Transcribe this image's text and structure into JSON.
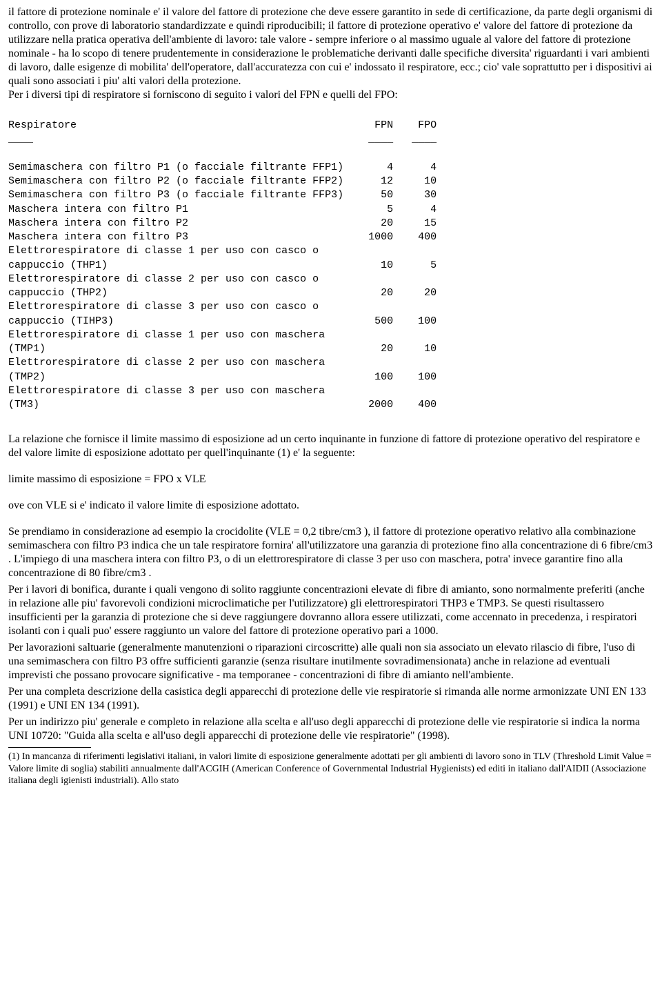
{
  "para1": "il fattore di protezione nominale e' il valore del fattore di protezione che deve essere garantito in sede di certificazione, da parte degli organismi di controllo, con prove di laboratorio standardizzate e quindi riproducibili; il fattore di protezione operativo e' valore del fattore di protezione da utilizzare nella pratica operativa dell'ambiente di lavoro: tale valore - sempre inferiore o al massimo uguale al valore del fattore di protezione nominale - ha lo scopo di tenere prudentemente in considerazione le problematiche derivanti dalle specifiche diversita' riguardanti i vari ambienti di lavoro, dalle esigenze di mobilita' dell'operatore, dall'accuratezza con cui e' indossato il respiratore, ecc.; cio' vale soprattutto per i dispositivi ai quali sono associati i piu' alti valori della protezione.",
  "para1b": "Per i diversi tipi di respiratore si forniscono di seguito i valori del FPN e quelli del FPO:",
  "table": {
    "header": {
      "col0": "Respiratore",
      "col1": "FPN",
      "col2": "FPO"
    },
    "rows": [
      {
        "label": "Semimaschera con filtro P1 (o facciale filtrante FFP1)",
        "fpn": "4",
        "fpo": "4"
      },
      {
        "label": "Semimaschera con filtro P2 (o facciale filtrante FFP2)",
        "fpn": "12",
        "fpo": "10"
      },
      {
        "label": "Semimaschera con filtro P3 (o facciale filtrante FFP3)",
        "fpn": "50",
        "fpo": "30"
      },
      {
        "label": "Maschera intera con filtro P1",
        "fpn": "5",
        "fpo": "4"
      },
      {
        "label": "Maschera intera con filtro P2",
        "fpn": "20",
        "fpo": "15"
      },
      {
        "label": "Maschera intera con filtro P3",
        "fpn": "1000",
        "fpo": "400"
      },
      {
        "label": "Elettrorespiratore di classe 1 per uso con casco o",
        "fpn": "",
        "fpo": ""
      },
      {
        "label": "cappuccio (THP1)",
        "fpn": "10",
        "fpo": "5"
      },
      {
        "label": "Elettrorespiratore di classe 2 per uso con casco o",
        "fpn": "",
        "fpo": ""
      },
      {
        "label": "cappuccio (THP2)",
        "fpn": "20",
        "fpo": "20"
      },
      {
        "label": "Elettrorespiratore di classe 3 per uso con casco o",
        "fpn": "",
        "fpo": ""
      },
      {
        "label": "cappuccio (TIHP3)",
        "fpn": "500",
        "fpo": "100"
      },
      {
        "label": "Elettrorespiratore di classe 1 per uso con maschera",
        "fpn": "",
        "fpo": ""
      },
      {
        "label": "(TMP1)",
        "fpn": "20",
        "fpo": "10"
      },
      {
        "label": "Elettrorespiratore di classe 2 per uso con maschera",
        "fpn": "",
        "fpo": ""
      },
      {
        "label": "(TMP2)",
        "fpn": "100",
        "fpo": "100"
      },
      {
        "label": "Elettrorespiratore di classe 3 per uso con maschera",
        "fpn": "",
        "fpo": ""
      },
      {
        "label": "(TM3)",
        "fpn": "2000",
        "fpo": "400"
      }
    ],
    "col0_width": 55,
    "col1_width": 7,
    "col2_width": 7,
    "font_family": "Courier New"
  },
  "para2": "La relazione che fornisce il limite massimo di esposizione ad un certo inquinante in funzione di fattore di protezione operativo del respiratore e del valore limite di esposizione adottato per quell'inquinante (1) e' la seguente:",
  "para3": "limite massimo di esposizione = FPO x VLE",
  "para4": "ove con VLE si e' indicato il valore limite di esposizione adottato.",
  "para5": "Se prendiamo in considerazione ad esempio la crocidolite (VLE = 0,2 tibre/cm3 ), il fattore di protezione operativo relativo alla combinazione semimaschera con filtro P3 indica che un tale respiratore fornira' all'utilizzatore una garanzia di protezione fino alla concentrazione di 6 fibre/cm3 . L'impiego di una maschera intera con filtro P3, o di un elettrorespiratore di classe 3 per uso con maschera, potra' invece garantire fino alla concentrazione di 80 fibre/cm3 .",
  "para6": "Per i lavori di bonifica, durante i quali vengono di solito raggiunte concentrazioni elevate di fibre di amianto, sono normalmente preferiti (anche in relazione alle piu' favorevoli condizioni microclimatiche per l'utilizzatore) gli elettrorespiratori THP3 e TMP3. Se questi risultassero insufficienti per la garanzia di protezione che si deve raggiungere dovranno allora essere utilizzati, come accennato in precedenza, i respiratori isolanti con i quali puo' essere raggiunto un valore del fattore di protezione operativo pari a 1000.",
  "para7": "Per lavorazioni saltuarie (generalmente manutenzioni o riparazioni circoscritte) alle quali non sia associato un elevato rilascio di fibre, l'uso di una semimaschera con filtro P3 offre sufficienti garanzie (senza risultare inutilmente sovradimensionata) anche in relazione ad eventuali imprevisti che possano provocare significative - ma temporanee - concentrazioni di fibre di amianto nell'ambiente.",
  "para8": "Per una completa descrizione della casistica degli apparecchi di protezione delle vie respiratorie si rimanda alle norme armonizzate UNI EN 133 (1991) e UNI EN 134 (1991).",
  "para9": "Per un indirizzo piu' generale e completo in relazione alla scelta e all'uso degli apparecchi di protezione delle vie respiratorie si indica la norma UNI 10720: \"Guida alla scelta e all'uso degli apparecchi di protezione delle vie respiratorie\" (1998).",
  "footnote": "(1) In mancanza di riferimenti legislativi italiani, in valori limite di esposizione generalmente adottati per gli ambienti di lavoro sono in TLV (Threshold Limit Value = Valore limite di soglia) stabiliti annualmente dall'ACGIH (American Conference of Governmental Industrial Hygienists) ed editi in italiano dall'AIDII (Associazione italiana degli igienisti industriali). Allo stato"
}
